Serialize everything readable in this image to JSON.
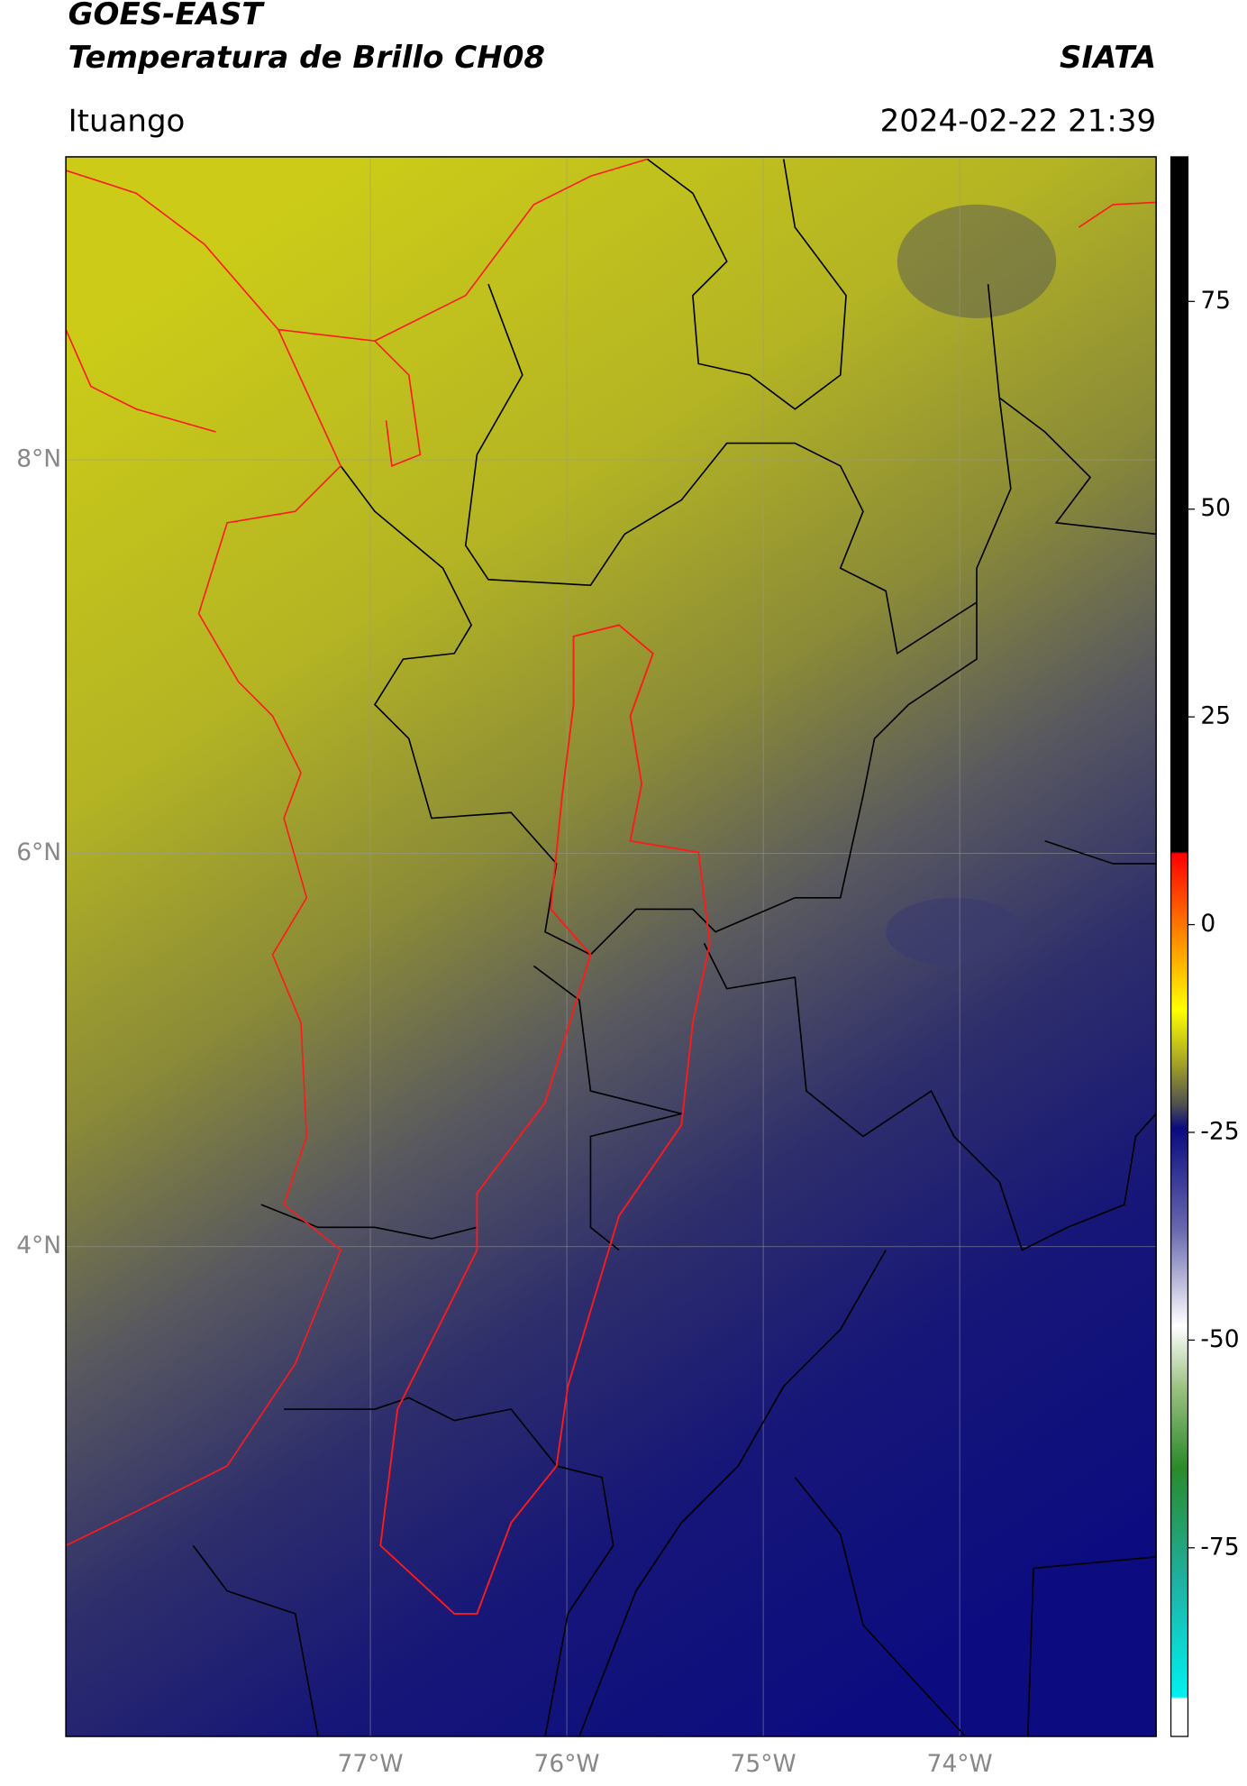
{
  "header": {
    "title_line1": "GOES-EAST",
    "title_line2": "Temperatura de Brillo CH08",
    "org": "SIATA",
    "location": "Ituango",
    "datetime": "2024-02-22 21:39"
  },
  "map": {
    "xlim": [
      -78.55,
      -73.0
    ],
    "ylim": [
      1.51,
      9.54
    ],
    "xticks": [
      {
        "value": -77,
        "label": "77°W"
      },
      {
        "value": -76,
        "label": "76°W"
      },
      {
        "value": -75,
        "label": "75°W"
      },
      {
        "value": -74,
        "label": "74°W"
      }
    ],
    "yticks": [
      {
        "value": 8,
        "label": "8°N"
      },
      {
        "value": 6,
        "label": "6°N"
      },
      {
        "value": 4,
        "label": "4°N"
      }
    ],
    "grid": true
  },
  "colorbar": {
    "lim": [
      -97.7,
      92.4
    ],
    "ticks": [
      75,
      50,
      25,
      0,
      -25,
      -50,
      -75
    ]
  }
}
